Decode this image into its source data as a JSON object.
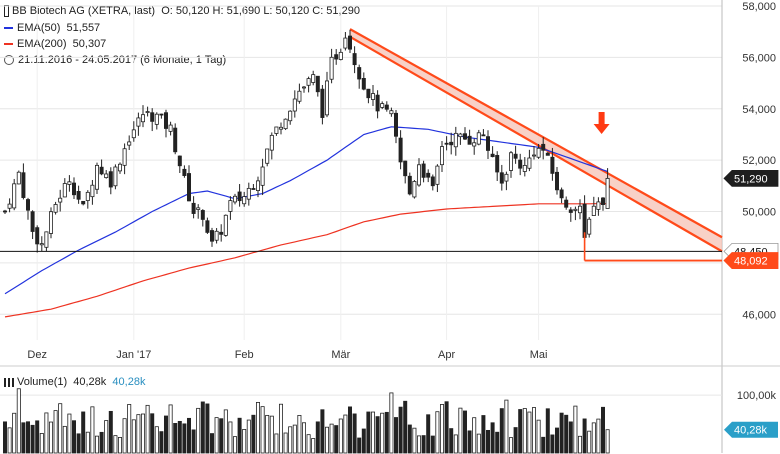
{
  "chart_data": {
    "type": "candlestick",
    "title": "BB Biotech AG (XETRA, last)",
    "ohlc_label": "O: 50,120  H: 51,690  L: 50,120  C: 51,290",
    "period_label": "21.11.2016 - 24.05.2017    (6 Monate, 1 Tag)",
    "indicators": [
      {
        "name": "EMA(50)",
        "value": "51,557",
        "color": "#2233dd"
      },
      {
        "name": "EMA(200)",
        "value": "50,307",
        "color": "#ee3322"
      }
    ],
    "ylim": [
      45000,
      58000
    ],
    "y_ticks": [
      "46,000",
      "48,000",
      "50,000",
      "52,000",
      "54,000",
      "56,000",
      "58,000"
    ],
    "y_tick_values": [
      46000,
      48000,
      50000,
      52000,
      54000,
      56000,
      58000
    ],
    "x_tick_labels": [
      "Dez",
      "Jan '17",
      "Feb",
      "Mär",
      "Apr",
      "Mai"
    ],
    "x_tick_index": [
      7,
      28,
      52,
      73,
      96,
      116
    ],
    "price_tags": [
      {
        "label": "51,290",
        "value": 51290,
        "style": "dark"
      },
      {
        "label": "48,450",
        "value": 48450,
        "style": "light"
      },
      {
        "label": "48,092",
        "value": 48092,
        "style": "red"
      }
    ],
    "support_level": 48450,
    "red_level": {
      "value": 48092,
      "start_index": 126
    },
    "trend_channel": {
      "upper": {
        "start_index": 75,
        "start_value": 57100,
        "end_value": 49000
      },
      "lower": {
        "start_index": 75,
        "start_value": 56800,
        "end_value": 48450
      }
    },
    "arrow_index": 131,
    "n_bars": 132,
    "candle_keys": [
      {
        "i": 0,
        "c": 50000
      },
      {
        "i": 3,
        "c": 51500
      },
      {
        "i": 6,
        "c": 49200
      },
      {
        "i": 8,
        "c": 48700
      },
      {
        "i": 11,
        "c": 50300
      },
      {
        "i": 14,
        "c": 51300
      },
      {
        "i": 17,
        "c": 50100
      },
      {
        "i": 20,
        "c": 51800
      },
      {
        "i": 23,
        "c": 51200
      },
      {
        "i": 27,
        "c": 52900
      },
      {
        "i": 30,
        "c": 53800
      },
      {
        "i": 33,
        "c": 53700
      },
      {
        "i": 36,
        "c": 53200
      },
      {
        "i": 39,
        "c": 51200
      },
      {
        "i": 41,
        "c": 50000
      },
      {
        "i": 43,
        "c": 49900
      },
      {
        "i": 45,
        "c": 48700
      },
      {
        "i": 47,
        "c": 49300
      },
      {
        "i": 49,
        "c": 50300
      },
      {
        "i": 52,
        "c": 50600
      },
      {
        "i": 55,
        "c": 51400
      },
      {
        "i": 58,
        "c": 52900
      },
      {
        "i": 61,
        "c": 53800
      },
      {
        "i": 64,
        "c": 54700
      },
      {
        "i": 67,
        "c": 55200
      },
      {
        "i": 69,
        "c": 53900
      },
      {
        "i": 71,
        "c": 55800
      },
      {
        "i": 73,
        "c": 56400
      },
      {
        "i": 74,
        "c": 57000
      },
      {
        "i": 76,
        "c": 55900
      },
      {
        "i": 78,
        "c": 54900
      },
      {
        "i": 81,
        "c": 54100
      },
      {
        "i": 84,
        "c": 53700
      },
      {
        "i": 86,
        "c": 51900
      },
      {
        "i": 88,
        "c": 50700
      },
      {
        "i": 90,
        "c": 51900
      },
      {
        "i": 93,
        "c": 50800
      },
      {
        "i": 95,
        "c": 52600
      },
      {
        "i": 98,
        "c": 52900
      },
      {
        "i": 101,
        "c": 52800
      },
      {
        "i": 104,
        "c": 53000
      },
      {
        "i": 106,
        "c": 51900
      },
      {
        "i": 108,
        "c": 51100
      },
      {
        "i": 110,
        "c": 52200
      },
      {
        "i": 113,
        "c": 51700
      },
      {
        "i": 115,
        "c": 52400
      },
      {
        "i": 117,
        "c": 52400
      },
      {
        "i": 119,
        "c": 51500
      },
      {
        "i": 121,
        "c": 50400
      },
      {
        "i": 123,
        "c": 50200
      },
      {
        "i": 125,
        "c": 50000
      },
      {
        "i": 126,
        "c": 48900
      },
      {
        "i": 127,
        "c": 49900
      },
      {
        "i": 128,
        "c": 50200
      },
      {
        "i": 129,
        "c": 50500
      },
      {
        "i": 130,
        "c": 50200
      },
      {
        "i": 131,
        "c": 51290
      }
    ],
    "ema50_keys": [
      {
        "i": 0,
        "v": 46800
      },
      {
        "i": 8,
        "v": 47700
      },
      {
        "i": 16,
        "v": 48500
      },
      {
        "i": 24,
        "v": 49200
      },
      {
        "i": 32,
        "v": 50000
      },
      {
        "i": 40,
        "v": 50700
      },
      {
        "i": 44,
        "v": 50800
      },
      {
        "i": 50,
        "v": 50500
      },
      {
        "i": 56,
        "v": 50700
      },
      {
        "i": 62,
        "v": 51200
      },
      {
        "i": 70,
        "v": 52000
      },
      {
        "i": 78,
        "v": 53000
      },
      {
        "i": 84,
        "v": 53300
      },
      {
        "i": 92,
        "v": 53200
      },
      {
        "i": 100,
        "v": 52900
      },
      {
        "i": 108,
        "v": 52700
      },
      {
        "i": 116,
        "v": 52500
      },
      {
        "i": 124,
        "v": 52000
      },
      {
        "i": 131,
        "v": 51557
      }
    ],
    "ema200_keys": [
      {
        "i": 0,
        "v": 45900
      },
      {
        "i": 10,
        "v": 46200
      },
      {
        "i": 20,
        "v": 46700
      },
      {
        "i": 30,
        "v": 47300
      },
      {
        "i": 40,
        "v": 47800
      },
      {
        "i": 50,
        "v": 48200
      },
      {
        "i": 60,
        "v": 48700
      },
      {
        "i": 70,
        "v": 49100
      },
      {
        "i": 78,
        "v": 49600
      },
      {
        "i": 86,
        "v": 49900
      },
      {
        "i": 96,
        "v": 50100
      },
      {
        "i": 106,
        "v": 50200
      },
      {
        "i": 116,
        "v": 50300
      },
      {
        "i": 124,
        "v": 50300
      },
      {
        "i": 131,
        "v": 50307
      }
    ],
    "volume": {
      "label": "Volume(1)",
      "value": "40,28k",
      "value2": "40,28k",
      "y_tick": "100,00k",
      "y_tick_value": 100000,
      "ylim": [
        0,
        140000
      ],
      "current_value": 40280
    }
  }
}
